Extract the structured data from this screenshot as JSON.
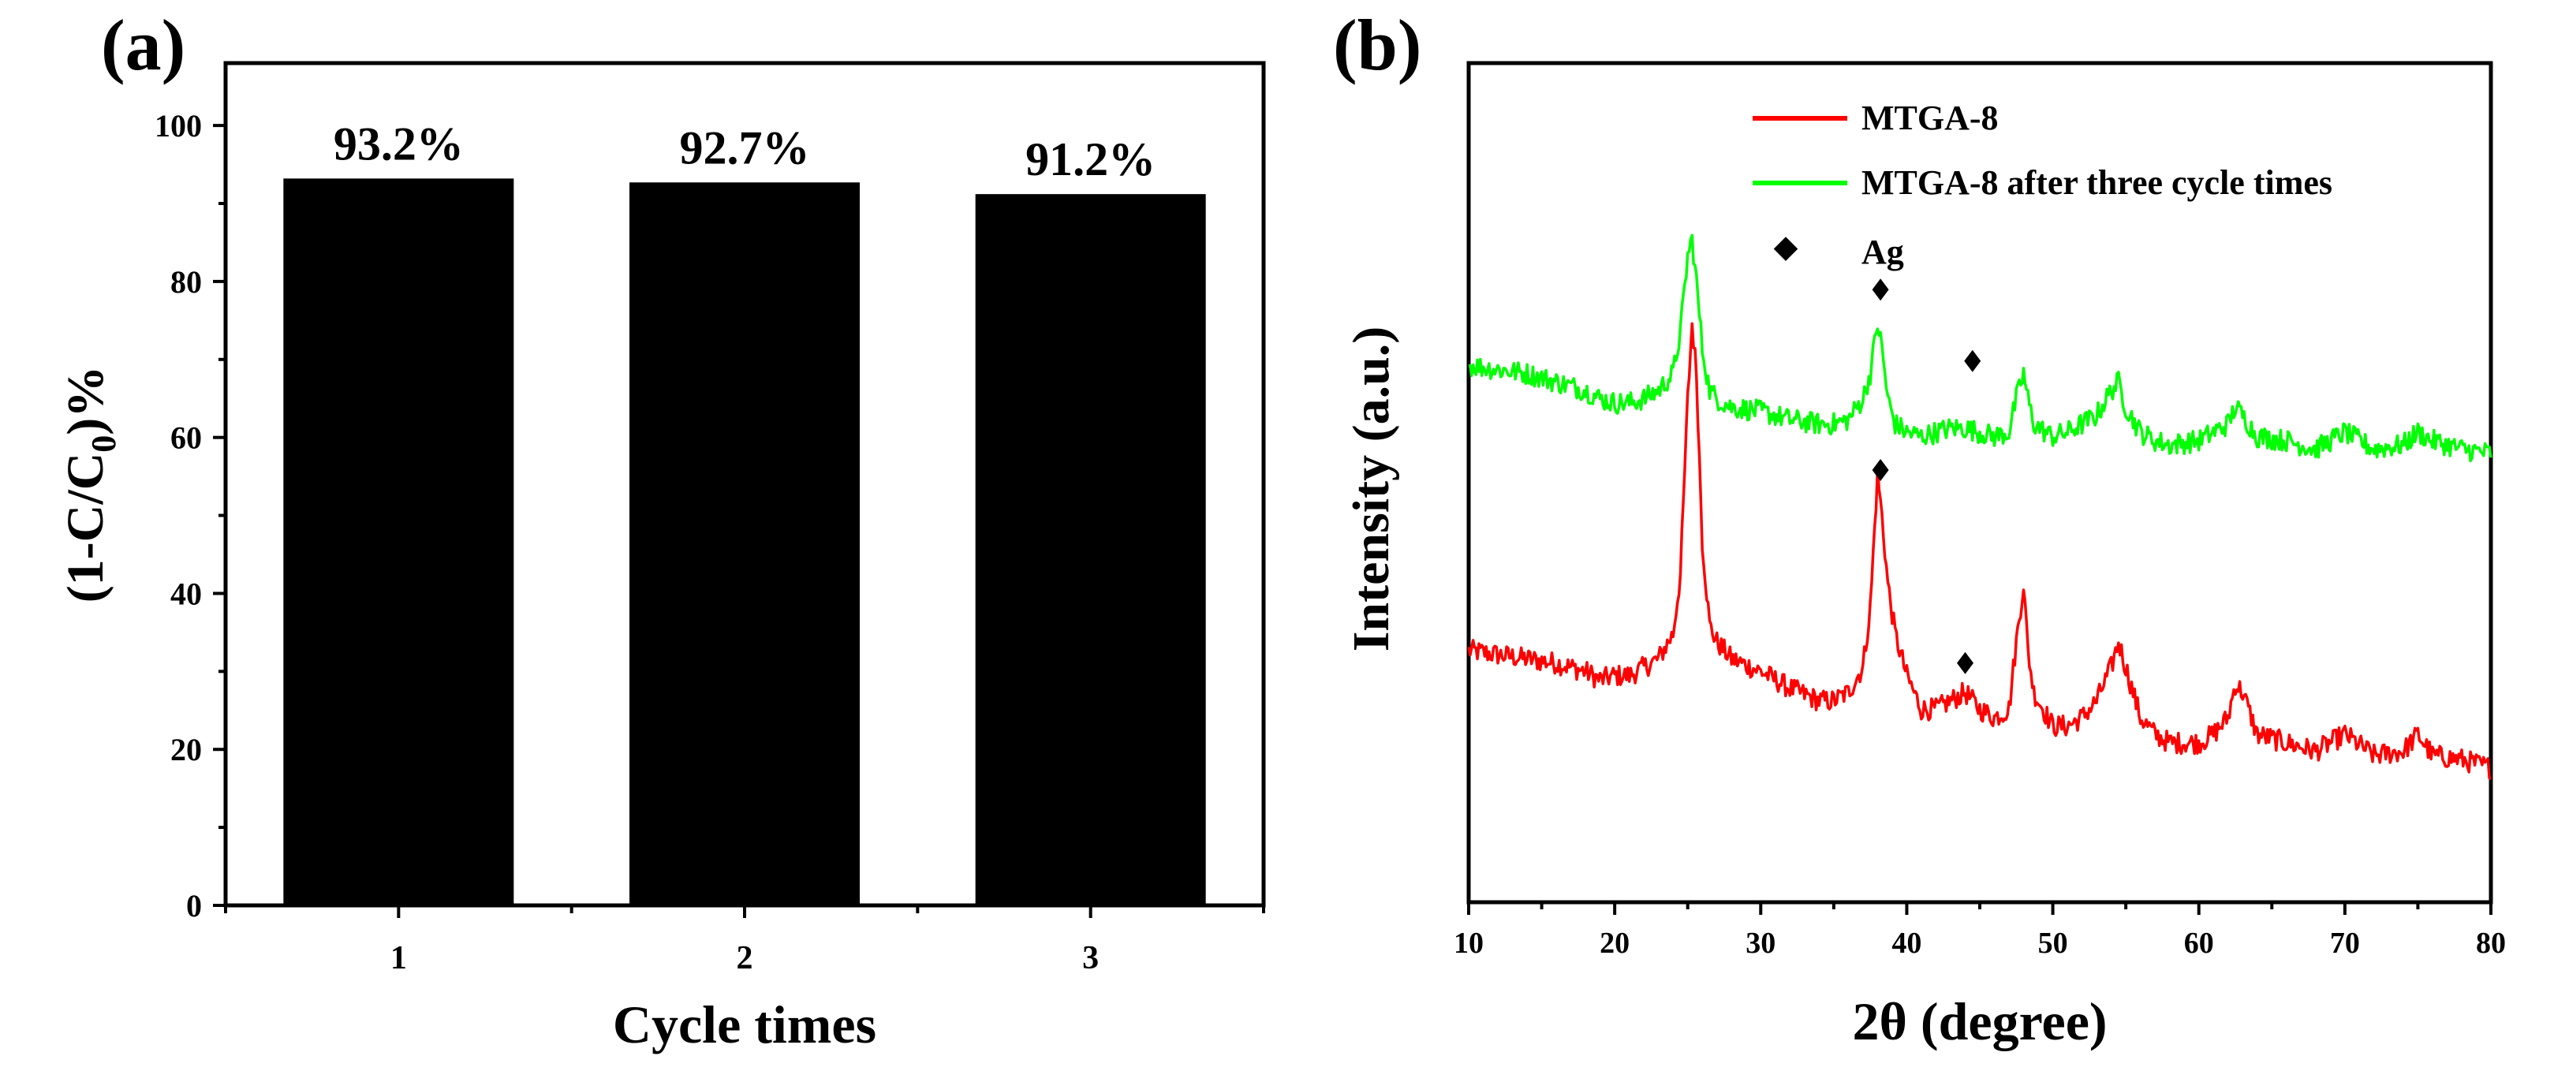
{
  "chart_data": [
    {
      "panel_label": "(a)",
      "type": "bar",
      "title": "",
      "xlabel": "Cycle times",
      "ylabel_main": "(1-C/C",
      "ylabel_sub": "0",
      "ylabel_end": ")%",
      "categories": [
        "1",
        "2",
        "3"
      ],
      "values": [
        93.2,
        92.7,
        91.2
      ],
      "data_labels": [
        "93.2%",
        "92.7%",
        "91.2%"
      ],
      "ylim": [
        0,
        108
      ],
      "yticks": [
        "0",
        "20",
        "40",
        "60",
        "80",
        "100"
      ],
      "ytick_values": [
        0,
        20,
        40,
        60,
        80,
        100
      ],
      "bar_color": "#000000",
      "grid": false
    },
    {
      "panel_label": "(b)",
      "type": "line",
      "title": "",
      "xlabel": "2θ (degree)",
      "ylabel": "Intensity (a.u.)",
      "xlim": [
        10,
        80
      ],
      "xticks": [
        "10",
        "20",
        "30",
        "40",
        "50",
        "60",
        "70",
        "80"
      ],
      "xtick_values": [
        10,
        20,
        30,
        40,
        50,
        60,
        70,
        80
      ],
      "ylim": [
        0,
        100
      ],
      "y_ticks_labeled": false,
      "legend_position": "top-right",
      "grid": false,
      "series": [
        {
          "name": "MTGA-8",
          "color": "#ff0000",
          "x": [
            10,
            12,
            14,
            16,
            18,
            19,
            20,
            21,
            22,
            23,
            24,
            24.5,
            25,
            25.3,
            25.6,
            26,
            26.5,
            27,
            28,
            30,
            32,
            34,
            35,
            36,
            37,
            37.5,
            38,
            38.3,
            38.7,
            39.2,
            40,
            41,
            42,
            43,
            44,
            45,
            46,
            47,
            47.5,
            48,
            48.3,
            48.7,
            49.5,
            50,
            51,
            52,
            53,
            54,
            54.5,
            55,
            56,
            57,
            58,
            60,
            61,
            62,
            62.5,
            63,
            64,
            66,
            67,
            68,
            69,
            70,
            72,
            74,
            75,
            76,
            78,
            80
          ],
          "y": [
            30,
            29.5,
            29,
            28.5,
            27.5,
            26.5,
            27,
            27,
            28,
            29,
            32,
            39,
            60,
            69,
            63,
            43,
            33,
            31,
            29,
            27.5,
            25.5,
            24,
            24,
            25,
            28,
            35,
            51,
            46,
            38,
            32,
            27,
            23,
            23,
            24,
            25,
            23,
            22,
            23,
            31,
            38,
            30,
            25,
            22.5,
            21,
            21,
            22,
            24,
            28,
            31,
            28,
            22,
            20,
            19,
            19,
            20,
            22,
            26,
            25,
            20,
            19,
            18.5,
            18,
            19,
            20,
            17.5,
            18,
            20,
            17.5,
            17,
            16
          ]
        },
        {
          "name": "MTGA-8 after three cycle times",
          "color": "#00ff00",
          "x": [
            10,
            12,
            14,
            16,
            18,
            19,
            20,
            21,
            22,
            23,
            24,
            24.5,
            25,
            25.3,
            25.6,
            26,
            26.5,
            27,
            28,
            30,
            32,
            34,
            35,
            36,
            37,
            37.5,
            38,
            38.3,
            38.7,
            39.2,
            40,
            41,
            42,
            43,
            44,
            45,
            46,
            47,
            47.5,
            48,
            48.3,
            48.7,
            49.5,
            50,
            51,
            52,
            53,
            54,
            54.5,
            55,
            56,
            57,
            58,
            60,
            61,
            62,
            62.5,
            63,
            64,
            66,
            67,
            68,
            69,
            70,
            72,
            74,
            75,
            76,
            78,
            80
          ],
          "y": [
            64,
            63.5,
            63,
            62,
            61,
            60,
            59.5,
            59.5,
            60,
            61,
            63,
            68,
            77,
            79,
            74,
            66,
            61,
            60,
            59,
            58.5,
            57.5,
            57,
            57,
            57.5,
            60,
            63,
            69,
            66,
            60,
            57,
            56,
            55.5,
            56,
            56.5,
            56.5,
            56,
            55.5,
            56,
            60,
            63,
            60,
            57,
            56,
            55.5,
            56,
            57,
            58,
            61,
            62,
            59,
            56,
            55,
            54.5,
            55,
            56,
            57,
            59,
            58,
            55.5,
            55,
            54.5,
            54,
            55,
            56,
            54,
            54.5,
            56,
            55,
            54,
            53.5
          ]
        }
      ],
      "legend_entries": [
        "MTGA-8",
        "MTGA-8 after three cycle times",
        "Ag"
      ],
      "marker_label": "Ag",
      "marker_symbol": "◆",
      "markers": [
        {
          "x": 38.2,
          "y": 73,
          "series": "MTGA-8 after three cycle times"
        },
        {
          "x": 44.5,
          "y": 64.5,
          "series": "MTGA-8 after three cycle times"
        },
        {
          "x": 38.2,
          "y": 51.5,
          "series": "MTGA-8"
        },
        {
          "x": 44.0,
          "y": 28.5,
          "series": "MTGA-8"
        }
      ]
    }
  ]
}
